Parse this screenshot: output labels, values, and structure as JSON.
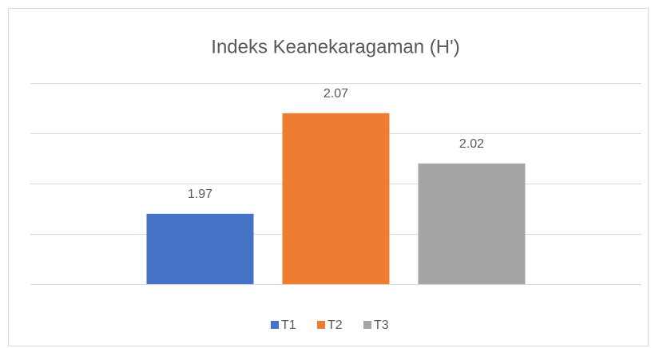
{
  "chart_data": {
    "type": "bar",
    "title": "Indeks Keanekaragaman (H')",
    "categories": [
      null
    ],
    "series": [
      {
        "name": "T1",
        "color": "#4472c4",
        "values": [
          1.97
        ]
      },
      {
        "name": "T2",
        "color": "#ed7d31",
        "values": [
          2.07
        ]
      },
      {
        "name": "T3",
        "color": "#a5a5a5",
        "values": [
          2.02
        ]
      }
    ],
    "ylim": [
      1.9,
      2.1
    ],
    "yticks": [
      1.9,
      1.95,
      2.0,
      2.05,
      2.1
    ],
    "grid": true,
    "legend": "bottom"
  }
}
